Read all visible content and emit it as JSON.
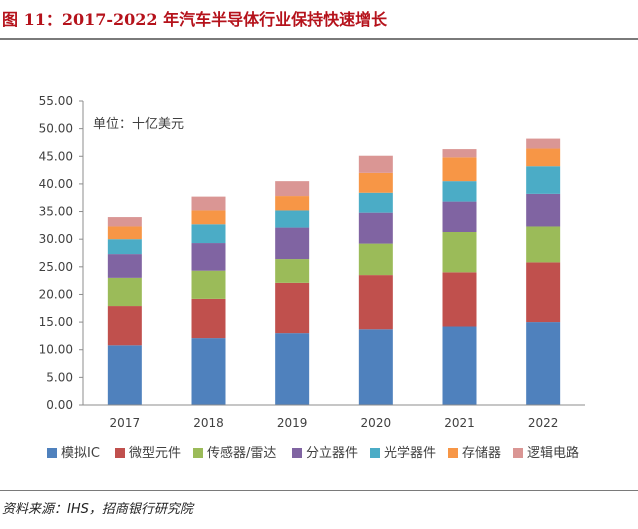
{
  "header": {
    "title": "图 11：2017-2022 年汽车半导体行业保持快速增长"
  },
  "footer": {
    "source": "资料来源：IHS，招商银行研究院"
  },
  "chart_data": {
    "type": "bar",
    "stacked": true,
    "unit_label": "单位：十亿美元",
    "categories": [
      "2017",
      "2018",
      "2019",
      "2020",
      "2021",
      "2022"
    ],
    "ylim": [
      0,
      55
    ],
    "yticks": [
      "0.00",
      "5.00",
      "10.00",
      "15.00",
      "20.00",
      "25.00",
      "30.00",
      "35.00",
      "40.00",
      "45.00",
      "50.00",
      "55.00"
    ],
    "series": [
      {
        "name": "模拟IC",
        "color": "#4f81bd",
        "values": [
          10.8,
          12.1,
          13.0,
          13.7,
          14.2,
          15.0
        ]
      },
      {
        "name": "微型元件",
        "color": "#c0504d",
        "values": [
          7.1,
          7.1,
          9.1,
          9.8,
          9.8,
          10.8
        ]
      },
      {
        "name": "传感器/雷达",
        "color": "#9bbb59",
        "values": [
          5.1,
          5.1,
          4.3,
          5.7,
          7.3,
          6.5
        ]
      },
      {
        "name": "分立器件",
        "color": "#8064a2",
        "values": [
          4.3,
          5.0,
          5.7,
          5.6,
          5.5,
          5.9
        ]
      },
      {
        "name": "光学器件",
        "color": "#4bacc6",
        "values": [
          2.7,
          3.4,
          3.1,
          3.6,
          3.7,
          5.0
        ]
      },
      {
        "name": "存储器",
        "color": "#f79646",
        "values": [
          2.3,
          2.5,
          2.6,
          3.6,
          4.3,
          3.2
        ]
      },
      {
        "name": "逻辑电路",
        "color": "#da9694",
        "values": [
          1.7,
          2.5,
          2.7,
          3.1,
          1.5,
          1.8
        ]
      }
    ],
    "legend_position": "bottom"
  }
}
